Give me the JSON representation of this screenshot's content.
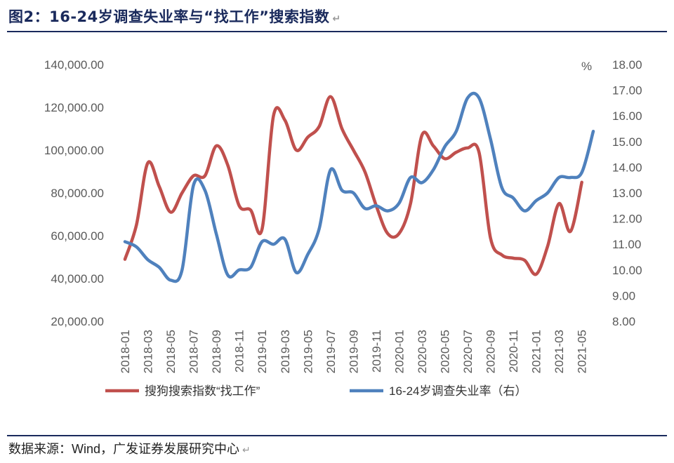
{
  "header": {
    "title": "图2：16-24岁调查失业率与“找工作”搜索指数"
  },
  "footer": {
    "source": "数据来源：Wind，广发证券发展研究中心"
  },
  "chart_data": {
    "type": "line",
    "title": "图2：16-24岁调查失业率与“找工作”搜索指数",
    "y_left": {
      "min": 20000,
      "max": 140000,
      "ticks": [
        "20,000.00",
        "40,000.00",
        "60,000.00",
        "80,000.00",
        "100,000.00",
        "120,000.00",
        "140,000.00"
      ]
    },
    "y_right": {
      "min": 8,
      "max": 18,
      "unit": "%",
      "ticks": [
        "8.00",
        "9.00",
        "10.00",
        "11.00",
        "12.00",
        "13.00",
        "14.00",
        "15.00",
        "16.00",
        "17.00",
        "18.00"
      ]
    },
    "x_tick_labels": [
      "2018-01",
      "2018-03",
      "2018-05",
      "2018-07",
      "2018-09",
      "2018-11",
      "2019-01",
      "2019-03",
      "2019-05",
      "2019-07",
      "2019-09",
      "2019-11",
      "2020-01",
      "2020-03",
      "2020-05",
      "2020-07",
      "2020-09",
      "2020-11",
      "2021-01",
      "2021-03",
      "2021-05"
    ],
    "months": [
      "2018-01",
      "2018-02",
      "2018-03",
      "2018-04",
      "2018-05",
      "2018-06",
      "2018-07",
      "2018-08",
      "2018-09",
      "2018-10",
      "2018-11",
      "2018-12",
      "2019-01",
      "2019-02",
      "2019-03",
      "2019-04",
      "2019-05",
      "2019-06",
      "2019-07",
      "2019-08",
      "2019-09",
      "2019-10",
      "2019-11",
      "2019-12",
      "2020-01",
      "2020-02",
      "2020-03",
      "2020-04",
      "2020-05",
      "2020-06",
      "2020-07",
      "2020-08",
      "2020-09",
      "2020-10",
      "2020-11",
      "2020-12",
      "2021-01",
      "2021-02",
      "2021-03",
      "2021-04",
      "2021-05",
      "2021-06"
    ],
    "series": [
      {
        "name": "搜狗搜索指数“找工作”",
        "axis": "left",
        "color": "#c0504d",
        "values": [
          49000,
          65000,
          94000,
          83000,
          71000,
          80000,
          88000,
          88000,
          102000,
          93000,
          74000,
          72000,
          63000,
          116000,
          114000,
          100000,
          106000,
          111000,
          125000,
          110000,
          100000,
          90000,
          74000,
          61000,
          61000,
          75000,
          107000,
          102000,
          96000,
          99000,
          101000,
          99000,
          59000,
          51000,
          49500,
          48500,
          42000,
          55000,
          75000,
          62000,
          85000,
          null
        ]
      },
      {
        "name": "16-24岁调查失业率（右）",
        "axis": "right",
        "color": "#4f81bd",
        "values": [
          11.1,
          10.9,
          10.4,
          10.1,
          9.6,
          10.0,
          13.3,
          13.1,
          11.4,
          9.8,
          10.0,
          10.1,
          11.1,
          11.0,
          11.2,
          9.9,
          10.6,
          11.6,
          13.9,
          13.1,
          13.0,
          12.4,
          12.5,
          12.3,
          12.6,
          13.6,
          13.4,
          13.9,
          14.8,
          15.4,
          16.7,
          16.7,
          15.1,
          13.2,
          12.8,
          12.3,
          12.7,
          13.0,
          13.6,
          13.6,
          13.8,
          15.4
        ]
      }
    ],
    "legend_position": "bottom",
    "grid": false
  }
}
